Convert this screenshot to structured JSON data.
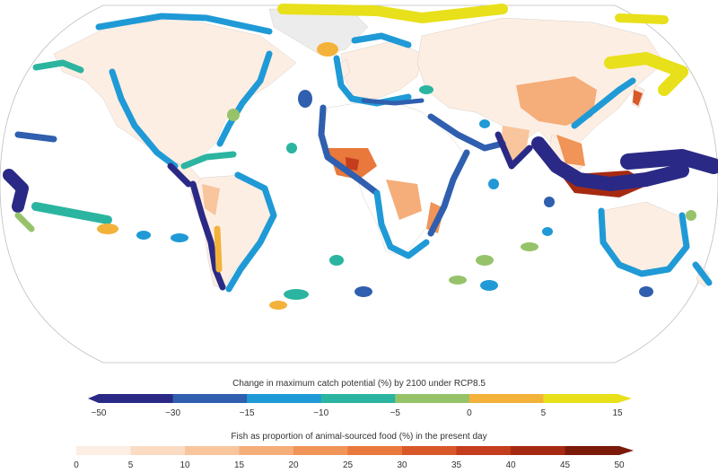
{
  "legend_catch": {
    "title": "Change in maximum catch potential (%) by 2100 under RCP8.5",
    "ticks": [
      "−50",
      "−30",
      "−15",
      "−10",
      "−5",
      "0",
      "5",
      "15"
    ],
    "colors": [
      "#2a2a86",
      "#2f5fae",
      "#1f9ad6",
      "#2bb5a0",
      "#96c36a",
      "#f3b23a",
      "#e8e01a"
    ]
  },
  "legend_fish": {
    "title": "Fish as proportion of animal-sourced food (%) in the present day",
    "ticks": [
      "0",
      "5",
      "10",
      "15",
      "20",
      "25",
      "30",
      "35",
      "40",
      "45",
      "50"
    ],
    "colors": [
      "#fdeee3",
      "#fbdcc3",
      "#f8c59d",
      "#f5ad79",
      "#f09458",
      "#e8783b",
      "#d9582a",
      "#c43d1c",
      "#a62a12",
      "#7c1a0a"
    ]
  },
  "map": {
    "ocean_color": "#ffffff",
    "land_color": "#fdeee3",
    "no_data_land_color": "#ffffff",
    "ice_color": "#d9d9d9"
  }
}
